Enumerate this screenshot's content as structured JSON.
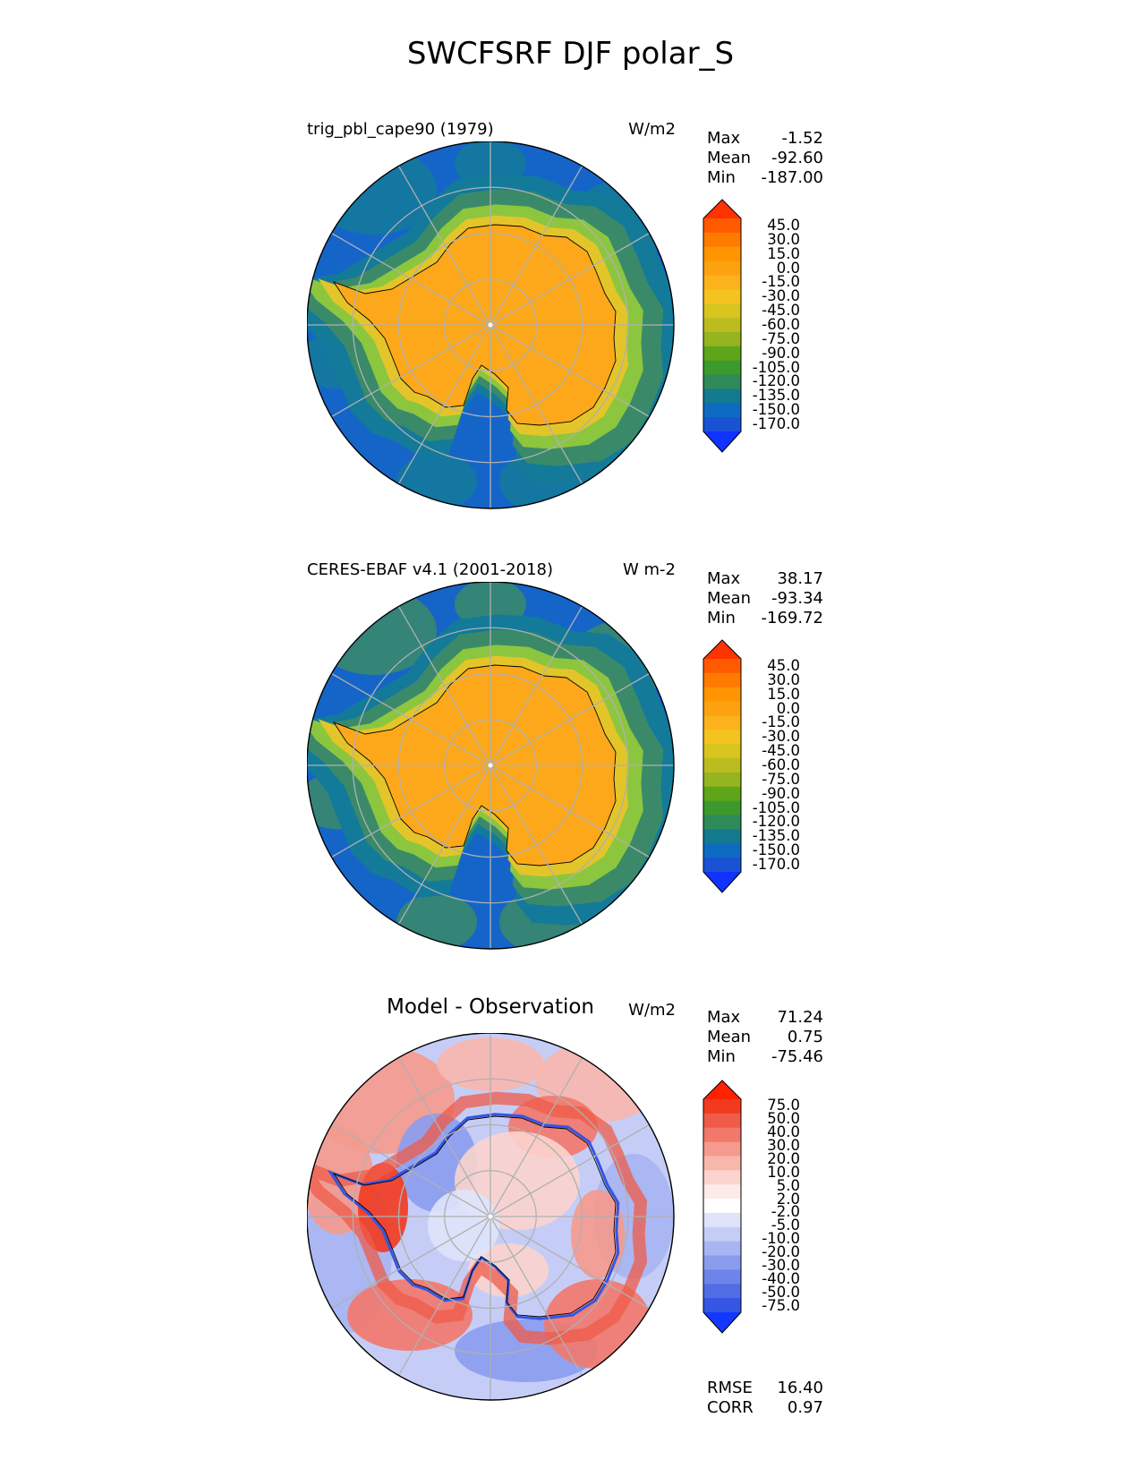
{
  "title": "SWCFSRF DJF polar_S",
  "panels": [
    {
      "id": "model",
      "title": "trig_pbl_cape90 (1979)",
      "title_style": "left",
      "units": "W/m2",
      "stats": [
        {
          "label": "Max",
          "value": "-1.52"
        },
        {
          "label": "Mean",
          "value": "-92.60"
        },
        {
          "label": "Min",
          "value": "-187.00"
        }
      ],
      "palette": "field",
      "colorbar_labels": [
        "45.0",
        "30.0",
        "15.0",
        "0.0",
        "-15.0",
        "-30.0",
        "-45.0",
        "-60.0",
        "-75.0",
        "-90.0",
        "-105.0",
        "-120.0",
        "-135.0",
        "-150.0",
        "-170.0"
      ],
      "colors": {
        "ocean_outer": "#1565c8",
        "ocean_mid": "#137a9a",
        "sea_ice": "#3a8a6a",
        "coast": "#8cc63f",
        "shelf": "#e3c52a",
        "land": "#fca81a"
      }
    },
    {
      "id": "obs",
      "title": "CERES-EBAF v4.1 (2001-2018)",
      "title_style": "left",
      "units": "W m-2",
      "stats": [
        {
          "label": "Max",
          "value": "38.17"
        },
        {
          "label": "Mean",
          "value": "-93.34"
        },
        {
          "label": "Min",
          "value": "-169.72"
        }
      ],
      "palette": "field",
      "colorbar_labels": [
        "45.0",
        "30.0",
        "15.0",
        "0.0",
        "-15.0",
        "-30.0",
        "-45.0",
        "-60.0",
        "-75.0",
        "-90.0",
        "-105.0",
        "-120.0",
        "-135.0",
        "-150.0",
        "-170.0"
      ],
      "colors": {
        "ocean_outer": "#1565c8",
        "ocean_mid": "#137a9a",
        "sea_ice": "#3a8a6a",
        "coast": "#8cc63f",
        "shelf": "#e3c52a",
        "land": "#fca81a"
      }
    },
    {
      "id": "diff",
      "title": "Model - Observation",
      "title_style": "center",
      "units": "W/m2",
      "stats": [
        {
          "label": "Max",
          "value": "71.24"
        },
        {
          "label": "Mean",
          "value": "0.75"
        },
        {
          "label": "Min",
          "value": "-75.46"
        }
      ],
      "palette": "diff",
      "colorbar_labels": [
        "75.0",
        "50.0",
        "40.0",
        "30.0",
        "20.0",
        "10.0",
        "5.0",
        "2.0",
        "-2.0",
        "-5.0",
        "-10.0",
        "-20.0",
        "-30.0",
        "-40.0",
        "-50.0",
        "-75.0"
      ],
      "footer_stats": [
        {
          "label": "RMSE",
          "value": "16.40"
        },
        {
          "label": "CORR",
          "value": "0.97"
        }
      ]
    }
  ],
  "field_palette": [
    "#ff3300",
    "#ff5a00",
    "#ff7b00",
    "#ff9500",
    "#fda20f",
    "#fbb21c",
    "#f5c31f",
    "#d9c51f",
    "#bdbc1f",
    "#95b41f",
    "#5fa51a",
    "#3c9a2c",
    "#2f8a5a",
    "#137a90",
    "#0e6bc2",
    "#1a52d6",
    "#1033ff"
  ],
  "diff_palette": [
    "#ff2200",
    "#f23a1f",
    "#ef5b48",
    "#f2786a",
    "#f59a8c",
    "#f8b7ad",
    "#fbd4cd",
    "#fdebe8",
    "#ffffff",
    "#dfe4fb",
    "#c5cdf7",
    "#a7b5f2",
    "#8a9cee",
    "#6d84ea",
    "#516de6",
    "#3456e2",
    "#1438ff"
  ],
  "chart_data": [
    {
      "type": "heatmap",
      "title": "trig_pbl_cape90 (1979)",
      "projection": "south polar stereographic",
      "units": "W/m2",
      "max": -1.52,
      "mean": -92.6,
      "min": -187.0,
      "levels": [
        -170.0,
        -150.0,
        -135.0,
        -120.0,
        -105.0,
        -90.0,
        -75.0,
        -60.0,
        -45.0,
        -30.0,
        -15.0,
        0.0,
        15.0,
        30.0,
        45.0
      ]
    },
    {
      "type": "heatmap",
      "title": "CERES-EBAF v4.1 (2001-2018)",
      "projection": "south polar stereographic",
      "units": "W m-2",
      "max": 38.17,
      "mean": -93.34,
      "min": -169.72,
      "levels": [
        -170.0,
        -150.0,
        -135.0,
        -120.0,
        -105.0,
        -90.0,
        -75.0,
        -60.0,
        -45.0,
        -30.0,
        -15.0,
        0.0,
        15.0,
        30.0,
        45.0
      ]
    },
    {
      "type": "heatmap",
      "title": "Model - Observation",
      "projection": "south polar stereographic",
      "units": "W/m2",
      "max": 71.24,
      "mean": 0.75,
      "min": -75.46,
      "rmse": 16.4,
      "corr": 0.97,
      "levels": [
        -75.0,
        -50.0,
        -40.0,
        -30.0,
        -20.0,
        -10.0,
        -5.0,
        -2.0,
        2.0,
        5.0,
        10.0,
        20.0,
        30.0,
        40.0,
        50.0,
        75.0
      ]
    }
  ]
}
